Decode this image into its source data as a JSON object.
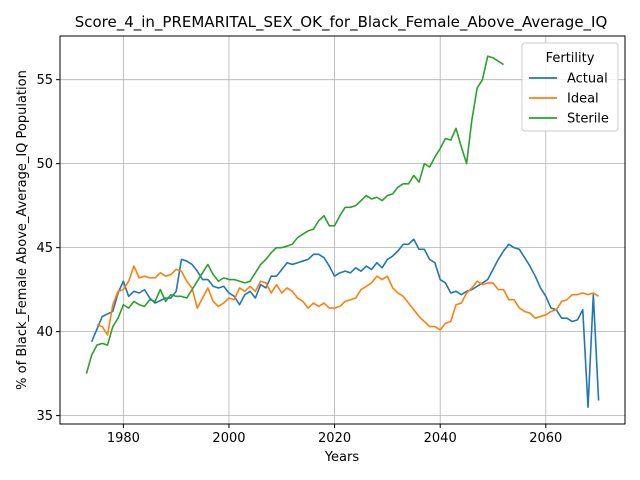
{
  "chart_data": {
    "type": "line",
    "title": "Score_4_in_PREMARITAL_SEX_OK_for_Black_Female_Above_Average_IQ",
    "xlabel": "Years",
    "ylabel": "% of Black_Female Above_Average_IQ Population",
    "xlim": [
      1968,
      2075
    ],
    "ylim": [
      34.5,
      57.6
    ],
    "xticks": [
      1980,
      2000,
      2020,
      2040,
      2060
    ],
    "yticks": [
      35,
      40,
      45,
      50,
      55
    ],
    "grid": true,
    "legend": {
      "title": "Fertility",
      "placement": "upper-right"
    },
    "series": [
      {
        "name": "Actual",
        "color": "#1f77b4",
        "points": [
          [
            1974,
            39.4
          ],
          [
            1976,
            40.9
          ],
          [
            1978,
            41.2
          ],
          [
            1979,
            42.3
          ],
          [
            1980,
            43.0
          ],
          [
            1981,
            42.1
          ],
          [
            1982,
            42.4
          ],
          [
            1983,
            42.3
          ],
          [
            1984,
            42.5
          ],
          [
            1985,
            42.0
          ],
          [
            1986,
            41.7
          ],
          [
            1988,
            42.0
          ],
          [
            1989,
            42.0
          ],
          [
            1990,
            42.4
          ],
          [
            1991,
            44.3
          ],
          [
            1992,
            44.2
          ],
          [
            1993,
            44.0
          ],
          [
            1994,
            43.6
          ],
          [
            1995,
            43.1
          ],
          [
            1996,
            43.1
          ],
          [
            1997,
            42.7
          ],
          [
            1998,
            42.6
          ],
          [
            1999,
            42.7
          ],
          [
            2000,
            42.3
          ],
          [
            2001,
            42.1
          ],
          [
            2002,
            41.6
          ],
          [
            2003,
            42.2
          ],
          [
            2004,
            42.4
          ],
          [
            2005,
            42.0
          ],
          [
            2006,
            42.8
          ],
          [
            2007,
            42.6
          ],
          [
            2008,
            43.3
          ],
          [
            2009,
            43.3
          ],
          [
            2010,
            43.7
          ],
          [
            2011,
            44.1
          ],
          [
            2012,
            44.0
          ],
          [
            2013,
            44.1
          ],
          [
            2014,
            44.2
          ],
          [
            2015,
            44.3
          ],
          [
            2016,
            44.6
          ],
          [
            2017,
            44.6
          ],
          [
            2018,
            44.4
          ],
          [
            2019,
            43.9
          ],
          [
            2020,
            43.3
          ],
          [
            2021,
            43.5
          ],
          [
            2022,
            43.6
          ],
          [
            2023,
            43.5
          ],
          [
            2024,
            43.8
          ],
          [
            2025,
            43.6
          ],
          [
            2026,
            43.9
          ],
          [
            2027,
            43.7
          ],
          [
            2028,
            44.1
          ],
          [
            2029,
            43.8
          ],
          [
            2030,
            44.3
          ],
          [
            2031,
            44.5
          ],
          [
            2032,
            44.8
          ],
          [
            2033,
            45.2
          ],
          [
            2034,
            45.2
          ],
          [
            2035,
            45.5
          ],
          [
            2036,
            44.9
          ],
          [
            2037,
            44.9
          ],
          [
            2038,
            44.3
          ],
          [
            2039,
            44.1
          ],
          [
            2040,
            43.1
          ],
          [
            2041,
            42.9
          ],
          [
            2042,
            42.3
          ],
          [
            2043,
            42.4
          ],
          [
            2044,
            42.2
          ],
          [
            2045,
            42.4
          ],
          [
            2046,
            42.5
          ],
          [
            2047,
            42.7
          ],
          [
            2048,
            42.9
          ],
          [
            2049,
            43.1
          ],
          [
            2050,
            43.7
          ],
          [
            2051,
            44.3
          ],
          [
            2052,
            44.8
          ],
          [
            2053,
            45.2
          ],
          [
            2054,
            45.0
          ],
          [
            2055,
            44.9
          ],
          [
            2056,
            44.4
          ],
          [
            2057,
            43.9
          ],
          [
            2058,
            43.3
          ],
          [
            2059,
            42.6
          ],
          [
            2060,
            42.1
          ],
          [
            2061,
            41.4
          ],
          [
            2062,
            41.3
          ],
          [
            2063,
            40.8
          ],
          [
            2064,
            40.8
          ],
          [
            2065,
            40.6
          ],
          [
            2066,
            40.7
          ],
          [
            2067,
            41.3
          ],
          [
            2068,
            35.5
          ],
          [
            2069,
            42.2
          ],
          [
            2070,
            35.9
          ]
        ]
      },
      {
        "name": "Ideal",
        "color": "#ff7f0e",
        "points": [
          [
            1975,
            40.4
          ],
          [
            1976,
            40.3
          ],
          [
            1977,
            39.8
          ],
          [
            1978,
            41.6
          ],
          [
            1979,
            42.4
          ],
          [
            1980,
            42.5
          ],
          [
            1981,
            43.0
          ],
          [
            1982,
            43.9
          ],
          [
            1983,
            43.2
          ],
          [
            1984,
            43.3
          ],
          [
            1985,
            43.2
          ],
          [
            1986,
            43.2
          ],
          [
            1987,
            43.5
          ],
          [
            1988,
            43.3
          ],
          [
            1989,
            43.4
          ],
          [
            1990,
            43.7
          ],
          [
            1991,
            43.6
          ],
          [
            1992,
            43.0
          ],
          [
            1993,
            42.6
          ],
          [
            1994,
            41.4
          ],
          [
            1995,
            42.0
          ],
          [
            1996,
            42.6
          ],
          [
            1997,
            41.8
          ],
          [
            1998,
            41.5
          ],
          [
            1999,
            41.7
          ],
          [
            2000,
            42.0
          ],
          [
            2001,
            41.9
          ],
          [
            2002,
            42.6
          ],
          [
            2003,
            42.4
          ],
          [
            2004,
            42.7
          ],
          [
            2005,
            42.4
          ],
          [
            2006,
            43.0
          ],
          [
            2007,
            42.9
          ],
          [
            2008,
            42.3
          ],
          [
            2009,
            42.8
          ],
          [
            2010,
            42.3
          ],
          [
            2011,
            42.6
          ],
          [
            2012,
            42.4
          ],
          [
            2013,
            42.0
          ],
          [
            2014,
            41.8
          ],
          [
            2015,
            41.4
          ],
          [
            2016,
            41.7
          ],
          [
            2017,
            41.5
          ],
          [
            2018,
            41.7
          ],
          [
            2019,
            41.4
          ],
          [
            2020,
            41.4
          ],
          [
            2021,
            41.5
          ],
          [
            2022,
            41.8
          ],
          [
            2023,
            41.9
          ],
          [
            2024,
            42.0
          ],
          [
            2025,
            42.5
          ],
          [
            2026,
            42.7
          ],
          [
            2027,
            42.9
          ],
          [
            2028,
            43.3
          ],
          [
            2029,
            43.1
          ],
          [
            2030,
            43.3
          ],
          [
            2031,
            42.6
          ],
          [
            2032,
            42.3
          ],
          [
            2033,
            42.1
          ],
          [
            2034,
            41.7
          ],
          [
            2035,
            41.3
          ],
          [
            2036,
            40.9
          ],
          [
            2037,
            40.6
          ],
          [
            2038,
            40.3
          ],
          [
            2039,
            40.3
          ],
          [
            2040,
            40.1
          ],
          [
            2041,
            40.5
          ],
          [
            2042,
            40.6
          ],
          [
            2043,
            41.6
          ],
          [
            2044,
            41.7
          ],
          [
            2045,
            42.3
          ],
          [
            2046,
            42.6
          ],
          [
            2047,
            43.0
          ],
          [
            2048,
            42.8
          ],
          [
            2049,
            42.9
          ],
          [
            2050,
            42.9
          ],
          [
            2051,
            42.5
          ],
          [
            2052,
            42.5
          ],
          [
            2053,
            41.9
          ],
          [
            2054,
            41.9
          ],
          [
            2055,
            41.4
          ],
          [
            2056,
            41.2
          ],
          [
            2057,
            41.1
          ],
          [
            2058,
            40.8
          ],
          [
            2059,
            40.9
          ],
          [
            2060,
            41.0
          ],
          [
            2061,
            41.2
          ],
          [
            2062,
            41.3
          ],
          [
            2063,
            41.8
          ],
          [
            2064,
            41.9
          ],
          [
            2065,
            42.2
          ],
          [
            2066,
            42.2
          ],
          [
            2067,
            42.3
          ],
          [
            2068,
            42.2
          ],
          [
            2069,
            42.3
          ],
          [
            2070,
            42.1
          ]
        ]
      },
      {
        "name": "Sterile",
        "color": "#2ca02c",
        "points": [
          [
            1973,
            37.5
          ],
          [
            1974,
            38.6
          ],
          [
            1975,
            39.2
          ],
          [
            1976,
            39.3
          ],
          [
            1977,
            39.2
          ],
          [
            1978,
            40.3
          ],
          [
            1979,
            40.8
          ],
          [
            1980,
            41.6
          ],
          [
            1981,
            41.4
          ],
          [
            1982,
            41.8
          ],
          [
            1983,
            41.6
          ],
          [
            1984,
            41.5
          ],
          [
            1985,
            41.9
          ],
          [
            1986,
            41.8
          ],
          [
            1987,
            42.5
          ],
          [
            1988,
            41.8
          ],
          [
            1989,
            42.2
          ],
          [
            1990,
            42.1
          ],
          [
            1991,
            42.1
          ],
          [
            1992,
            42.0
          ],
          [
            1993,
            42.5
          ],
          [
            1994,
            43.0
          ],
          [
            1995,
            43.5
          ],
          [
            1996,
            44.0
          ],
          [
            1997,
            43.4
          ],
          [
            1998,
            43.0
          ],
          [
            1999,
            43.2
          ],
          [
            2000,
            43.1
          ],
          [
            2001,
            43.1
          ],
          [
            2002,
            43.0
          ],
          [
            2003,
            42.9
          ],
          [
            2004,
            43.0
          ],
          [
            2005,
            43.5
          ],
          [
            2006,
            44.0
          ],
          [
            2007,
            44.3
          ],
          [
            2008,
            44.7
          ],
          [
            2009,
            45.0
          ],
          [
            2010,
            45.0
          ],
          [
            2011,
            45.1
          ],
          [
            2012,
            45.2
          ],
          [
            2013,
            45.6
          ],
          [
            2014,
            45.8
          ],
          [
            2015,
            46.0
          ],
          [
            2016,
            46.1
          ],
          [
            2017,
            46.6
          ],
          [
            2018,
            46.9
          ],
          [
            2019,
            46.3
          ],
          [
            2020,
            46.3
          ],
          [
            2021,
            46.9
          ],
          [
            2022,
            47.4
          ],
          [
            2023,
            47.4
          ],
          [
            2024,
            47.5
          ],
          [
            2025,
            47.8
          ],
          [
            2026,
            48.1
          ],
          [
            2027,
            47.9
          ],
          [
            2028,
            48.0
          ],
          [
            2029,
            47.8
          ],
          [
            2030,
            48.1
          ],
          [
            2031,
            48.2
          ],
          [
            2032,
            48.6
          ],
          [
            2033,
            48.8
          ],
          [
            2034,
            48.8
          ],
          [
            2035,
            49.3
          ],
          [
            2036,
            48.9
          ],
          [
            2037,
            50.0
          ],
          [
            2038,
            49.8
          ],
          [
            2039,
            50.4
          ],
          [
            2040,
            50.9
          ],
          [
            2041,
            51.5
          ],
          [
            2042,
            51.4
          ],
          [
            2043,
            52.1
          ],
          [
            2044,
            51.0
          ],
          [
            2045,
            50.0
          ],
          [
            2046,
            52.6
          ],
          [
            2047,
            54.5
          ],
          [
            2048,
            55.0
          ],
          [
            2049,
            56.4
          ],
          [
            2050,
            56.3
          ],
          [
            2051,
            56.1
          ],
          [
            2052,
            55.9
          ]
        ]
      }
    ]
  }
}
